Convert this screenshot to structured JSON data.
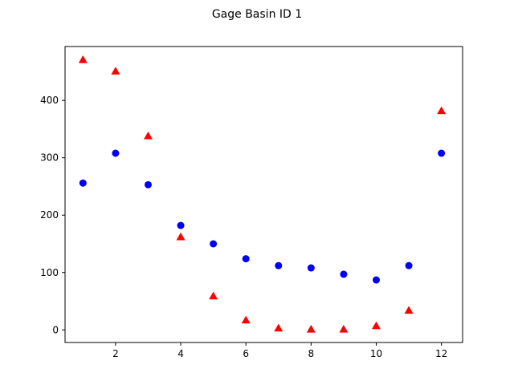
{
  "chart_data": {
    "type": "scatter",
    "title": "Gage Basin ID 1",
    "xlabel": "",
    "ylabel": "",
    "xlim": [
      0.45,
      12.65
    ],
    "ylim": [
      -22,
      494
    ],
    "xticks": [
      2,
      4,
      6,
      8,
      10,
      12
    ],
    "yticks": [
      0,
      100,
      200,
      300,
      400
    ],
    "grid": false,
    "legend": false,
    "series": [
      {
        "marker": "circle",
        "color": "#0000ff",
        "x": [
          1,
          2,
          3,
          4,
          5,
          6,
          7,
          8,
          9,
          10,
          11,
          12
        ],
        "y": [
          256,
          308,
          253,
          182,
          150,
          124,
          112,
          108,
          97,
          87,
          112,
          308
        ]
      },
      {
        "marker": "triangle",
        "color": "#ff0000",
        "x": [
          1,
          2,
          3,
          4,
          5,
          6,
          7,
          8,
          9,
          10,
          11,
          12
        ],
        "y": [
          471,
          451,
          338,
          162,
          59,
          17,
          3,
          1,
          1,
          7,
          34,
          382
        ]
      }
    ]
  }
}
